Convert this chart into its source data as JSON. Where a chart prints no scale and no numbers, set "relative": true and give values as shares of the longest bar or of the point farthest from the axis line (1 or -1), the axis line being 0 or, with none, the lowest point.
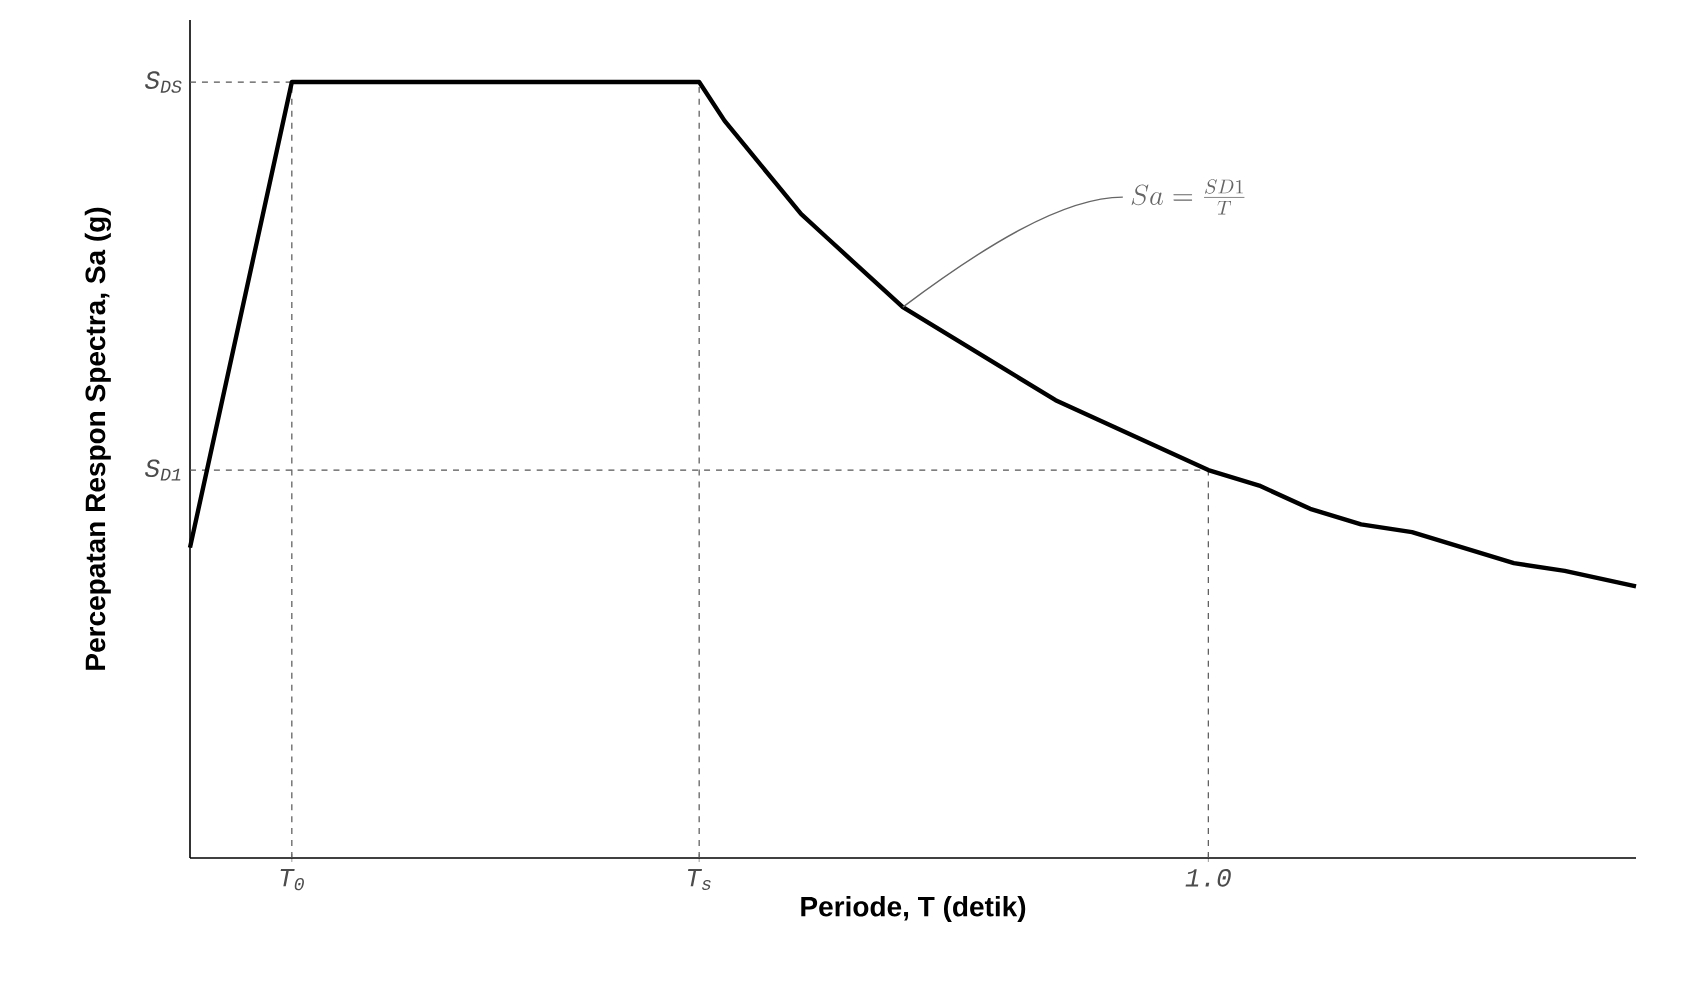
{
  "chart_data": {
    "type": "line",
    "relative": true,
    "xlabel": "Periode, T (detik)",
    "ylabel": "Percepatan Respon Spectra, Sa (g)",
    "xlim": [
      0,
      1.42
    ],
    "xticks": [
      {
        "value": 0.1,
        "label": "T$_{0}$"
      },
      {
        "value": 0.5,
        "label": "T$_{s}$"
      },
      {
        "value": 1.0,
        "label": "1.0"
      }
    ],
    "series": [
      {
        "color": "#000000",
        "x": [
          0,
          0.1,
          0.5,
          0.525,
          0.55,
          0.575,
          0.6,
          0.625,
          0.65,
          0.675,
          0.7,
          0.75,
          0.8,
          0.85,
          0.9,
          0.95,
          1.0,
          1.05,
          1.1,
          1.15,
          1.2,
          1.25,
          1.3,
          1.35,
          1.42
        ],
        "values": [
          0.4,
          1,
          1,
          0.95,
          0.91,
          0.87,
          0.83,
          0.8,
          0.77,
          0.74,
          0.71,
          0.67,
          0.63,
          0.59,
          0.56,
          0.53,
          0.5,
          0.48,
          0.45,
          0.43,
          0.42,
          0.4,
          0.38,
          0.37,
          0.35
        ]
      }
    ],
    "ref_lines": [
      {
        "axis": "y",
        "value": 1,
        "label": "S$_{DS}$",
        "line_style": "dashed",
        "color": "#555555"
      },
      {
        "axis": "y",
        "value": 0.5,
        "label": "S$_{D1}$",
        "line_style": "dashed",
        "color": "#555555"
      },
      {
        "axis": "x",
        "value": 0.1,
        "line_style": "dashed",
        "color": "#555555"
      },
      {
        "axis": "x",
        "value": 0.5,
        "line_style": "dashed",
        "color": "#555555"
      },
      {
        "axis": "x",
        "value": 1.0,
        "line_style": "dashed",
        "color": "#555555"
      }
    ],
    "annotations": [
      {
        "text": "Sa=\\frac{SD1}{T}",
        "x": 0.7,
        "y": 0.71
      }
    ],
    "grid": false
  }
}
